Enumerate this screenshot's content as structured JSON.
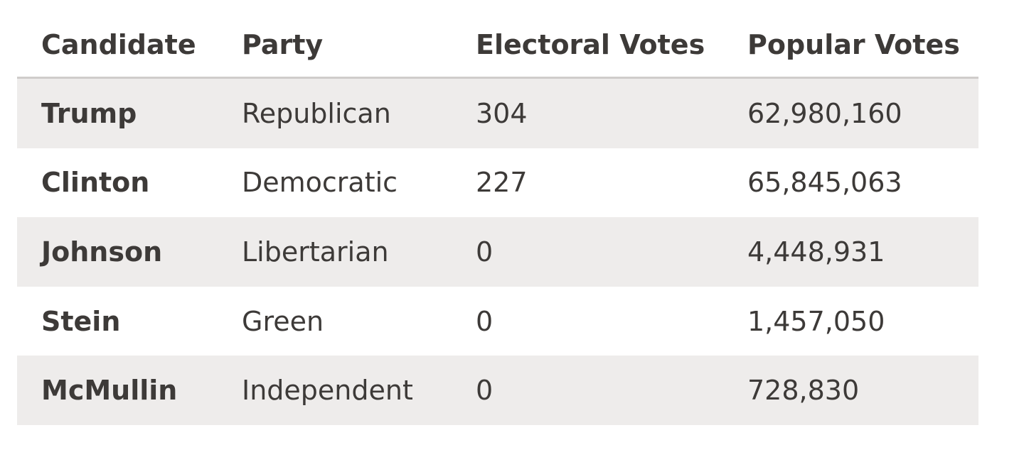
{
  "table": {
    "headers": [
      "Candidate",
      "Party",
      "Electoral Votes",
      "Popular Votes"
    ],
    "rows": [
      [
        "Trump",
        "Republican",
        "304",
        "62,980,160"
      ],
      [
        "Clinton",
        "Democratic",
        "227",
        "65,845,063"
      ],
      [
        "Johnson",
        "Libertarian",
        "0",
        "4,448,931"
      ],
      [
        "Stein",
        "Green",
        "0",
        "1,457,050"
      ],
      [
        "McMullin",
        "Independent",
        "0",
        "728,830"
      ]
    ]
  }
}
